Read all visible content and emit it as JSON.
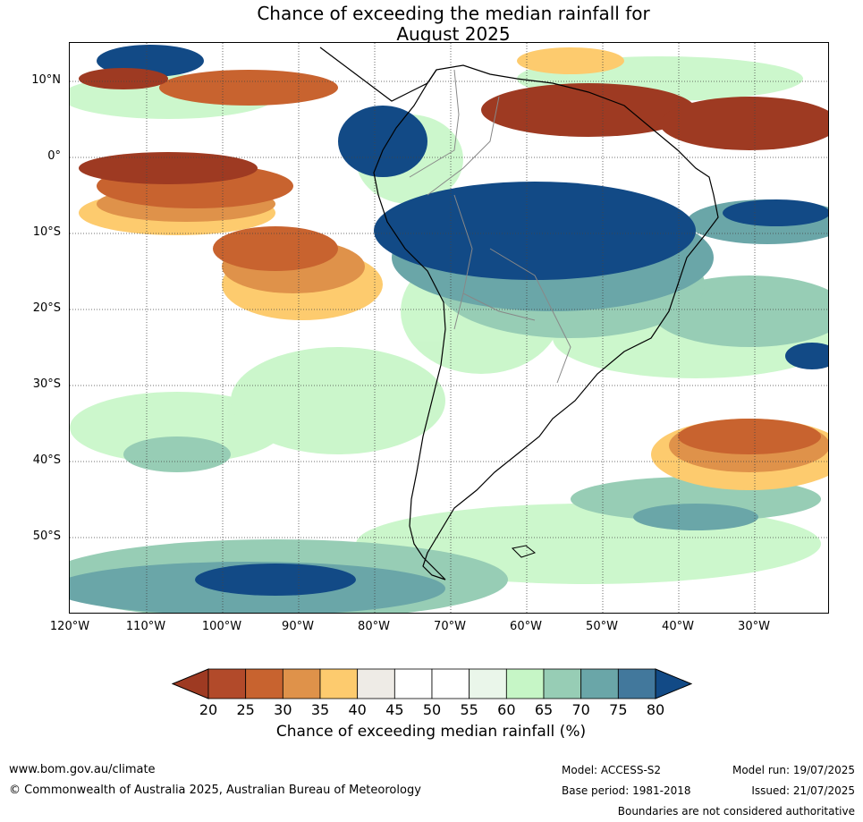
{
  "title": {
    "line1": "Chance of exceeding the median rainfall for",
    "line2": "August 2025"
  },
  "map": {
    "lat_labels": [
      "10°N",
      "0°",
      "10°S",
      "20°S",
      "30°S",
      "40°S",
      "50°S"
    ],
    "lon_labels": [
      "120°W",
      "110°W",
      "100°W",
      "90°W",
      "80°W",
      "70°W",
      "60°W",
      "50°W",
      "40°W",
      "30°W"
    ]
  },
  "colorbar": {
    "ticks": [
      "20",
      "25",
      "30",
      "35",
      "40",
      "45",
      "50",
      "55",
      "60",
      "65",
      "70",
      "75",
      "80"
    ],
    "colors": [
      "#9e3a22",
      "#b24a2a",
      "#c8632f",
      "#df924a",
      "#fdcb6e",
      "#eeebe6",
      "#ffffff",
      "#ffffff",
      "#eaf6ea",
      "#c6f6c6",
      "#97cdb5",
      "#6aa6a8",
      "#42789c",
      "#124a86"
    ],
    "label": "Chance of exceeding median rainfall (%)"
  },
  "footer": {
    "url": "www.bom.gov.au/climate",
    "copyright": "© Commonwealth of Australia 2025, Australian Bureau of Meteorology",
    "model": "Model: ACCESS-S2",
    "base_period": "Base period: 1981-2018",
    "model_run": "Model run: 19/07/2025",
    "issued": "Issued: 21/07/2025",
    "disclaimer": "Boundaries are not considered authoritative"
  }
}
